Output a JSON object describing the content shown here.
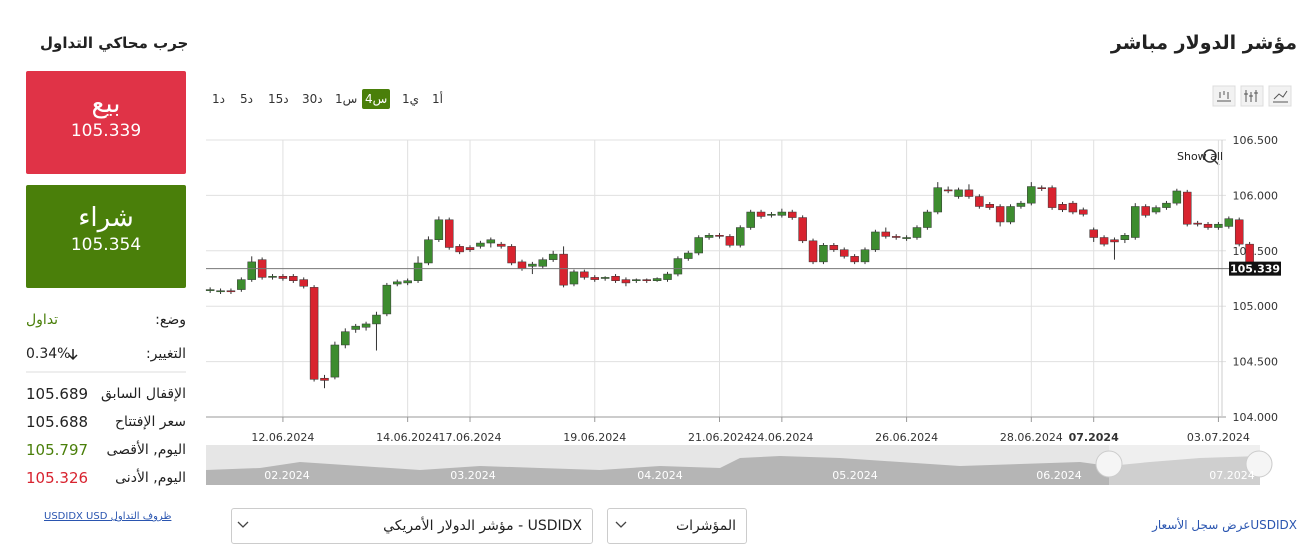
{
  "header": {
    "title": "مؤشر الدولار مباشر"
  },
  "trade_panel": {
    "title": "جرب محاكي التداول",
    "sell": {
      "label": "بيع",
      "price": "105.339"
    },
    "buy": {
      "label": "شراء",
      "price": "105.354"
    },
    "stats": [
      {
        "label": "وضع:",
        "value": "تداول"
      },
      {
        "label": "التغيير:",
        "value": "0.34%"
      },
      {
        "label": "الإقفال السابق",
        "value": "105.689"
      },
      {
        "label": "سعر الإفتتاح",
        "value": "105.688"
      },
      {
        "label": "اليوم, الأقصى",
        "value": "105.797"
      },
      {
        "label": "اليوم, الأدنى",
        "value": "105.326"
      }
    ],
    "link": "USDIDX USD ظروف التداول"
  },
  "timeframes": {
    "options": [
      "1د",
      "5د",
      "15د",
      "30د",
      "1س",
      "4س",
      "1ي",
      "1أ"
    ],
    "active": 5
  },
  "chart_data": {
    "type": "candlestick",
    "up_color": "#3d8c2f",
    "down_color": "#d8232f",
    "grid": true,
    "reset_zoom": "Show all",
    "current_price": 105.339,
    "ylim": [
      104,
      106.5
    ],
    "yticks": [
      {
        "value": 104,
        "label": "104.000"
      },
      {
        "value": 104.5,
        "label": "104.500"
      },
      {
        "value": 105,
        "label": "105.000"
      },
      {
        "value": 105.5,
        "label": "105.500"
      },
      {
        "value": 106,
        "label": "106.000"
      },
      {
        "value": 106.5,
        "label": "106.500"
      }
    ],
    "xlim": [
      -0.4,
      101
    ],
    "xticks": [
      {
        "value": 7,
        "label": "12.06.2024"
      },
      {
        "value": 19,
        "label": "14.06.2024"
      },
      {
        "value": 25,
        "label": "17.06.2024"
      },
      {
        "value": 37,
        "label": "19.06.2024"
      },
      {
        "value": 49,
        "label": "21.06.2024"
      },
      {
        "value": 55,
        "label": "24.06.2024"
      },
      {
        "value": 67,
        "label": "26.06.2024"
      },
      {
        "value": 79,
        "label": "28.06.2024"
      },
      {
        "value": 85,
        "label": "07.2024"
      },
      {
        "value": 97,
        "label": "03.07.2024"
      }
    ],
    "bold_xtick": 8,
    "open": [
      105.14,
      105.13,
      105.14,
      105.15,
      105.24,
      105.42,
      105.26,
      105.27,
      105.27,
      105.24,
      105.17,
      104.35,
      104.36,
      104.65,
      104.79,
      104.81,
      104.84,
      104.93,
      105.2,
      105.21,
      105.23,
      105.39,
      105.6,
      105.78,
      105.54,
      105.53,
      105.54,
      105.57,
      105.56,
      105.54,
      105.4,
      105.36,
      105.36,
      105.42,
      105.47,
      105.2,
      105.31,
      105.26,
      105.25,
      105.27,
      105.24,
      105.23,
      105.24,
      105.23,
      105.24,
      105.29,
      105.43,
      105.48,
      105.62,
      105.64,
      105.63,
      105.55,
      105.71,
      105.85,
      105.82,
      105.82,
      105.85,
      105.8,
      105.59,
      105.4,
      105.55,
      105.51,
      105.45,
      105.4,
      105.51,
      105.67,
      105.63,
      105.61,
      105.62,
      105.71,
      105.85,
      106.05,
      105.99,
      106.05,
      105.99,
      105.92,
      105.9,
      105.76,
      105.9,
      105.93,
      106.07,
      106.07,
      105.92,
      105.93,
      105.87,
      105.69,
      105.62,
      105.6,
      105.6,
      105.62,
      105.9,
      105.85,
      105.89,
      105.93,
      106.03,
      105.75,
      105.74,
      105.71,
      105.72,
      105.78,
      105.56
    ],
    "high": [
      105.17,
      105.16,
      105.16,
      105.26,
      105.45,
      105.44,
      105.29,
      105.29,
      105.29,
      105.26,
      105.19,
      104.38,
      104.68,
      104.8,
      104.84,
      104.86,
      104.95,
      105.21,
      105.24,
      105.25,
      105.45,
      105.63,
      105.81,
      105.8,
      105.56,
      105.55,
      105.59,
      105.62,
      105.58,
      105.56,
      105.42,
      105.4,
      105.44,
      105.5,
      105.54,
      105.33,
      105.33,
      105.28,
      105.27,
      105.29,
      105.26,
      105.25,
      105.25,
      105.26,
      105.31,
      105.45,
      105.5,
      105.64,
      105.66,
      105.66,
      105.65,
      105.73,
      105.87,
      105.87,
      105.85,
      105.88,
      105.87,
      105.82,
      105.61,
      105.57,
      105.57,
      105.53,
      105.47,
      105.53,
      105.69,
      105.71,
      105.65,
      105.64,
      105.73,
      105.87,
      106.12,
      106.08,
      106.07,
      106.1,
      106.01,
      105.94,
      105.92,
      105.92,
      105.95,
      106.12,
      106.09,
      106.09,
      105.94,
      105.95,
      105.89,
      105.71,
      105.64,
      105.62,
      105.66,
      105.93,
      105.92,
      105.91,
      105.95,
      106.06,
      106.05,
      105.77,
      105.76,
      105.76,
      105.81,
      105.8,
      105.58
    ],
    "low": [
      105.12,
      105.11,
      105.11,
      105.13,
      105.22,
      105.24,
      105.24,
      105.23,
      105.21,
      105.16,
      104.32,
      104.26,
      104.34,
      104.62,
      104.76,
      104.78,
      104.6,
      104.91,
      105.18,
      105.19,
      105.21,
      105.37,
      105.58,
      105.51,
      105.47,
      105.49,
      105.52,
      105.53,
      105.52,
      105.37,
      105.32,
      105.29,
      105.34,
      105.4,
      105.17,
      105.18,
      105.24,
      105.22,
      105.23,
      105.21,
      105.18,
      105.21,
      105.21,
      105.22,
      105.22,
      105.27,
      105.41,
      105.46,
      105.6,
      105.61,
      105.53,
      105.53,
      105.69,
      105.79,
      105.8,
      105.8,
      105.78,
      105.57,
      105.38,
      105.38,
      105.49,
      105.43,
      105.38,
      105.38,
      105.49,
      105.61,
      105.6,
      105.59,
      105.6,
      105.69,
      105.83,
      106.02,
      105.97,
      105.97,
      105.88,
      105.87,
      105.72,
      105.74,
      105.88,
      105.91,
      106.04,
      105.87,
      105.85,
      105.83,
      105.81,
      105.58,
      105.54,
      105.42,
      105.57,
      105.6,
      105.8,
      105.83,
      105.87,
      105.91,
      105.72,
      105.72,
      105.69,
      105.69,
      105.7,
      105.54,
      105.33
    ],
    "close": [
      105.15,
      105.14,
      105.13,
      105.24,
      105.4,
      105.26,
      105.27,
      105.25,
      105.23,
      105.18,
      104.34,
      104.33,
      104.65,
      104.77,
      104.82,
      104.84,
      104.92,
      105.19,
      105.22,
      105.23,
      105.39,
      105.6,
      105.78,
      105.53,
      105.49,
      105.51,
      105.57,
      105.6,
      105.54,
      105.39,
      105.34,
      105.38,
      105.42,
      105.47,
      105.19,
      105.31,
      105.26,
      105.24,
      105.26,
      105.23,
      105.21,
      105.24,
      105.23,
      105.25,
      105.29,
      105.43,
      105.48,
      105.62,
      105.64,
      105.63,
      105.55,
      105.71,
      105.85,
      105.81,
      105.83,
      105.85,
      105.8,
      105.59,
      105.4,
      105.55,
      105.51,
      105.45,
      105.4,
      105.51,
      105.67,
      105.63,
      105.62,
      105.62,
      105.71,
      105.85,
      106.07,
      106.04,
      106.05,
      105.99,
      105.9,
      105.89,
      105.76,
      105.9,
      105.93,
      106.08,
      106.06,
      105.89,
      105.87,
      105.85,
      105.83,
      105.62,
      105.56,
      105.58,
      105.64,
      105.9,
      105.82,
      105.89,
      105.93,
      106.04,
      105.74,
      105.74,
      105.71,
      105.74,
      105.79,
      105.56,
      105.339
    ]
  },
  "navigator": {
    "labels": [
      "02.2024",
      "03.2024",
      "04.2024",
      "05.2024",
      "06.2024",
      "07.2024"
    ]
  },
  "footer": {
    "instrument": "USDIDX - مؤشر الدولار الأمريكي",
    "indicators": "المؤشرات",
    "history_link": "عرض سجل الأسعار",
    "symbol": "USDIDX"
  }
}
